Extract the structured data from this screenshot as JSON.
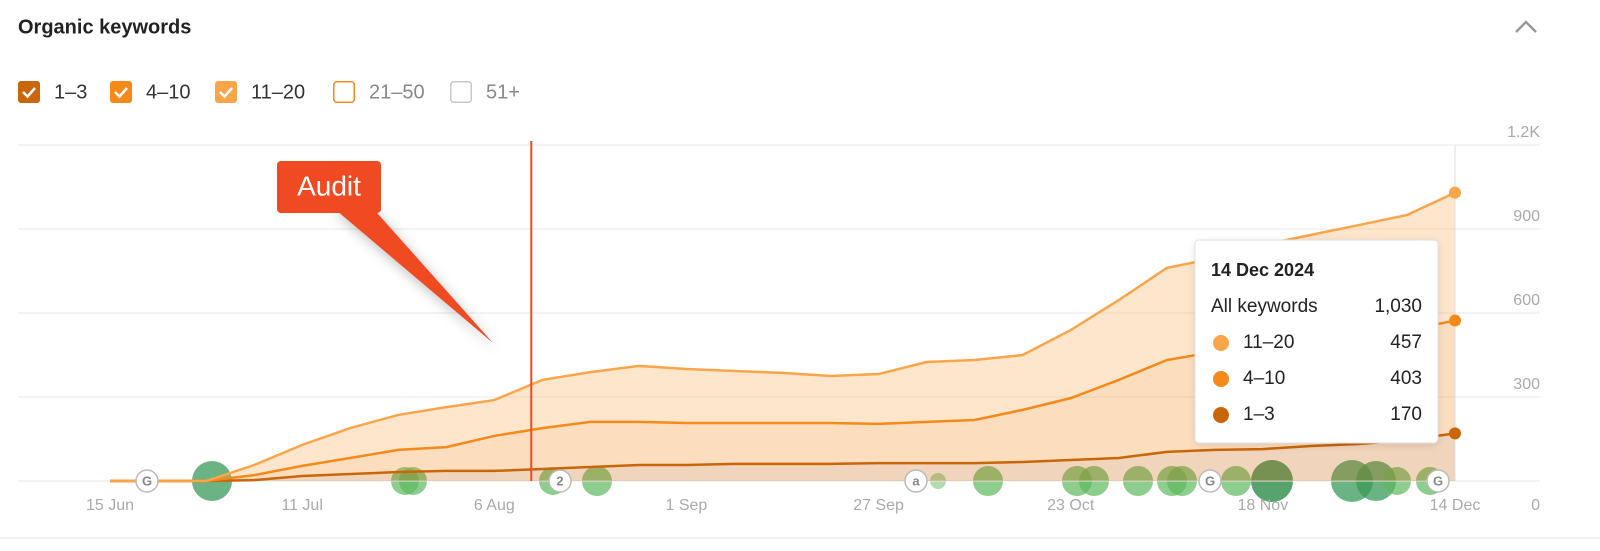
{
  "chart_data": {
    "type": "stacked-area",
    "title": "Organic keywords",
    "categories": [
      "15 Jun",
      null,
      null,
      null,
      "11 Jul",
      null,
      null,
      null,
      "6 Aug",
      null,
      null,
      null,
      "1 Sep",
      null,
      null,
      null,
      "27 Sep",
      null,
      null,
      null,
      "23 Oct",
      null,
      null,
      null,
      "18 Nov",
      null,
      null,
      null,
      "14 Dec"
    ],
    "series": [
      {
        "name": "1–3",
        "color": "#c9660a",
        "checked": true,
        "values": [
          0,
          0,
          0,
          3,
          18,
          25,
          32,
          36,
          36,
          43,
          50,
          57,
          57,
          61,
          61,
          61,
          64,
          64,
          64,
          68,
          75,
          82,
          104,
          111,
          114,
          125,
          132,
          146,
          170
        ]
      },
      {
        "name": "4–10",
        "color": "#f5891a",
        "checked": true,
        "values": [
          0,
          0,
          0,
          18,
          36,
          57,
          79,
          85,
          125,
          146,
          161,
          154,
          150,
          146,
          146,
          146,
          140,
          147,
          154,
          186,
          221,
          279,
          328,
          350,
          368,
          379,
          389,
          393,
          403
        ]
      },
      {
        "name": "11–20",
        "color": "#fba54a",
        "checked": true,
        "values": [
          0,
          0,
          0,
          36,
          75,
          107,
          125,
          143,
          128,
          172,
          178,
          200,
          193,
          186,
          179,
          168,
          178,
          214,
          214,
          196,
          243,
          285,
          329,
          335,
          361,
          375,
          393,
          411,
          457
        ]
      }
    ],
    "unchecked_series": [
      {
        "name": "21–50",
        "color": "#f5891a",
        "checked": false
      },
      {
        "name": "51+",
        "color": "#c8c8c8",
        "checked": false
      }
    ],
    "ylim": [
      0,
      1200
    ],
    "yticks": [
      0,
      300,
      600,
      900,
      {
        "value": 1200,
        "label": "1.2K"
      }
    ],
    "grid": true,
    "annotation": {
      "text": "Audit",
      "x": 8.77,
      "color": "#f04a23"
    },
    "event_markers": [
      "G",
      "2",
      "a",
      "G",
      "G"
    ],
    "tooltip": {
      "date": "14 Dec 2024",
      "label": "All keywords",
      "total": {
        "value": 1030,
        "label": "1,030"
      },
      "index": 28
    }
  }
}
